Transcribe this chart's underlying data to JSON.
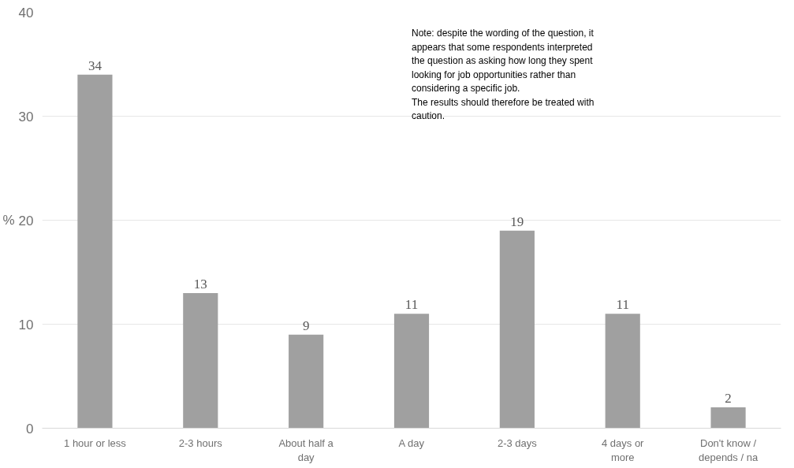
{
  "chart_data": {
    "type": "bar",
    "ylabel": "%",
    "categories": [
      "1 hour or less",
      "2-3 hours",
      "About half a\nday",
      "A day",
      "2-3 days",
      "4 days or\nmore",
      "Don't know /\ndepends / na"
    ],
    "values": [
      34,
      13,
      9,
      11,
      19,
      11,
      2
    ],
    "color": "#a0a0a0",
    "ylim": [
      0,
      40
    ],
    "yticks": [
      0,
      10,
      20,
      30,
      40
    ],
    "grid": "y",
    "data_labels": true,
    "annotations": [
      {
        "text": "Note: despite the wording of the question, it\nappears that some respondents interpreted\nthe question as asking how long they spent\nlooking for job opportunities rather than\nconsidering a specific job.\nThe results should therefore be treated with\ncaution."
      }
    ]
  }
}
